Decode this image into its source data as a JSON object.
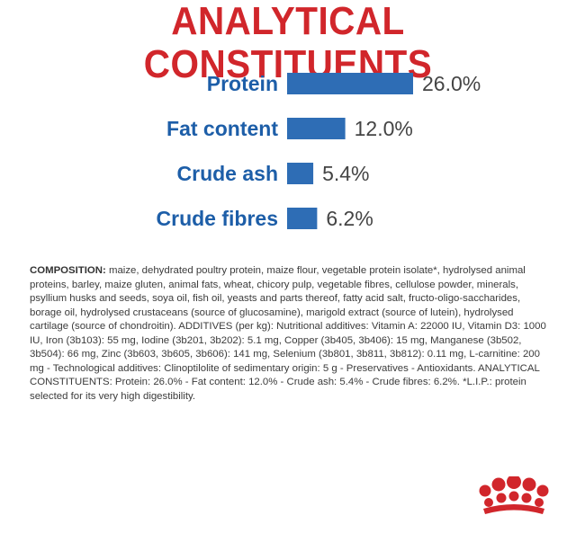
{
  "title": "ANALYTICAL CONSTITUENTS",
  "chart_data": {
    "type": "bar",
    "orientation": "horizontal",
    "categories": [
      "Protein",
      "Fat content",
      "Crude ash",
      "Crude fibres"
    ],
    "values": [
      26.0,
      12.0,
      5.4,
      6.2
    ],
    "value_labels": [
      "26.0%",
      "12.0%",
      "5.4%",
      "6.2%"
    ],
    "unit": "%",
    "xlim": [
      0,
      26.0
    ],
    "bar_color": "#2e6db5",
    "label_color": "#1d5ea8",
    "grid": false,
    "legend": "none",
    "title": "ANALYTICAL CONSTITUENTS"
  },
  "composition": {
    "label": "COMPOSITION:",
    "text": " maize, dehydrated poultry protein, maize flour, vegetable protein isolate*, hydrolysed animal proteins, barley, maize gluten, animal fats, wheat, chicory pulp, vegetable fibres, cellulose powder, minerals, psyllium husks and seeds, soya oil, fish oil, yeasts and parts thereof, fatty acid salt, fructo-oligo-saccharides, borage oil, hydrolysed crustaceans (source of glucosamine), marigold extract (source of lutein), hydrolysed cartilage (source of chondroitin). ADDITIVES (per kg): Nutritional additives: Vitamin A: 22000 IU, Vitamin D3: 1000 IU, Iron (3b103): 55 mg, Iodine (3b201, 3b202): 5.1 mg, Copper (3b405, 3b406): 15 mg, Manganese (3b502, 3b504): 66 mg, Zinc (3b603, 3b605, 3b606): 141 mg, Selenium (3b801, 3b811, 3b812): 0.11 mg, L-carnitine: 200 mg - Technological additives: Clinoptilolite of sedimentary origin: 5 g - Preservatives - Antioxidants. ANALYTICAL CONSTITUENTS: Protein: 26.0% - Fat content: 12.0% - Crude ash: 5.4% - Crude fibres: 6.2%. *L.I.P.: protein selected for its very high digestibility."
  },
  "logo": {
    "name": "royal-canin-crown-logo",
    "color": "#d1262b"
  }
}
